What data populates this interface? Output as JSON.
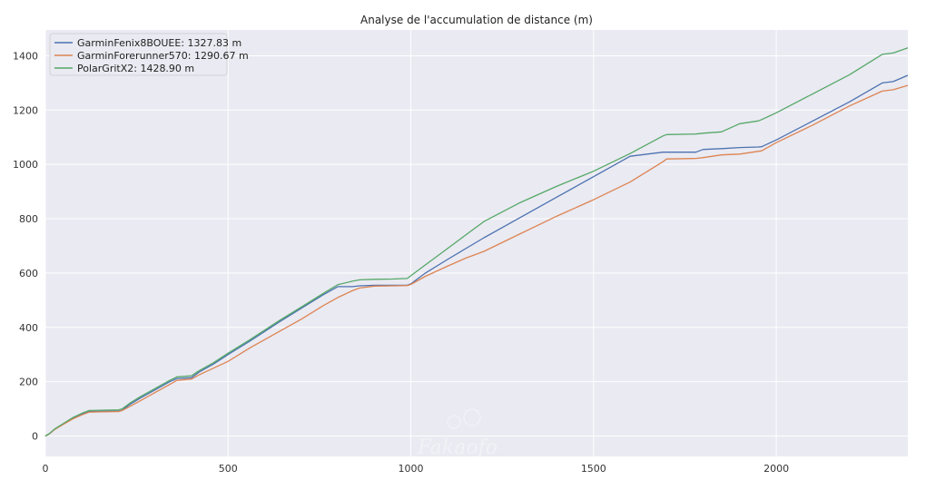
{
  "chart_data": {
    "type": "line",
    "title": "Analyse de l'accumulation de distance (m)",
    "xlabel": "",
    "ylabel": "",
    "xlim": [
      0,
      2360
    ],
    "ylim": [
      -75,
      1495
    ],
    "x_ticks": [
      0,
      500,
      1000,
      1500,
      2000
    ],
    "y_ticks": [
      0,
      200,
      400,
      600,
      800,
      1000,
      1200,
      1400
    ],
    "grid": true,
    "legend_position": "top-left",
    "colors": {
      "background": "#eaeaf2",
      "grid": "#ffffff"
    },
    "watermark": "Fakaofo",
    "series": [
      {
        "name": "GarminFenix8BOUEE: 1327.83 m",
        "color": "#4c72b0",
        "x": [
          0,
          10,
          25,
          50,
          75,
          100,
          120,
          150,
          200,
          210,
          230,
          260,
          300,
          340,
          360,
          400,
          420,
          460,
          500,
          560,
          600,
          640,
          700,
          760,
          800,
          840,
          860,
          900,
          950,
          990,
          1000,
          1040,
          1100,
          1150,
          1200,
          1300,
          1400,
          1500,
          1600,
          1690,
          1700,
          1780,
          1800,
          1850,
          1900,
          1950,
          1960,
          2000,
          2100,
          2200,
          2290,
          2320,
          2360
        ],
        "y": [
          0,
          8,
          25,
          45,
          65,
          80,
          90,
          91,
          91,
          95,
          115,
          140,
          170,
          200,
          212,
          215,
          235,
          265,
          300,
          350,
          385,
          420,
          470,
          520,
          550,
          550,
          553,
          555,
          555,
          555,
          560,
          600,
          650,
          690,
          730,
          805,
          880,
          955,
          1030,
          1045,
          1045,
          1045,
          1055,
          1058,
          1062,
          1064,
          1065,
          1090,
          1160,
          1230,
          1300,
          1305,
          1328
        ]
      },
      {
        "name": "GarminForerunner570: 1290.67 m",
        "color": "#dd8452",
        "x": [
          0,
          10,
          25,
          50,
          75,
          100,
          120,
          150,
          200,
          210,
          230,
          260,
          300,
          340,
          360,
          400,
          420,
          460,
          500,
          560,
          600,
          640,
          700,
          760,
          800,
          840,
          860,
          900,
          950,
          990,
          1000,
          1040,
          1100,
          1150,
          1200,
          1300,
          1400,
          1500,
          1600,
          1690,
          1700,
          1780,
          1800,
          1850,
          1900,
          1950,
          1960,
          2000,
          2100,
          2200,
          2290,
          2320,
          2360
        ],
        "y": [
          0,
          7,
          24,
          44,
          63,
          78,
          88,
          89,
          90,
          94,
          108,
          130,
          160,
          190,
          205,
          210,
          225,
          250,
          275,
          325,
          355,
          385,
          430,
          480,
          510,
          535,
          545,
          552,
          553,
          554,
          558,
          588,
          625,
          655,
          680,
          745,
          810,
          870,
          935,
          1010,
          1020,
          1022,
          1025,
          1035,
          1038,
          1048,
          1050,
          1080,
          1145,
          1215,
          1270,
          1275,
          1291
        ]
      },
      {
        "name": "PolarGritX2: 1428.90 m",
        "color": "#55a868",
        "x": [
          0,
          10,
          25,
          50,
          75,
          100,
          120,
          150,
          200,
          210,
          230,
          260,
          300,
          340,
          360,
          400,
          420,
          460,
          500,
          560,
          600,
          640,
          700,
          760,
          800,
          840,
          860,
          900,
          950,
          990,
          1000,
          1040,
          1100,
          1150,
          1200,
          1300,
          1400,
          1500,
          1600,
          1690,
          1700,
          1780,
          1800,
          1850,
          1900,
          1950,
          1960,
          2000,
          2100,
          2200,
          2290,
          2320,
          2360
        ],
        "y": [
          0,
          8,
          26,
          47,
          68,
          84,
          94,
          95,
          96,
          100,
          120,
          145,
          175,
          205,
          218,
          222,
          240,
          270,
          305,
          355,
          390,
          425,
          475,
          525,
          557,
          570,
          575,
          577,
          578,
          580,
          590,
          630,
          690,
          740,
          790,
          860,
          920,
          975,
          1040,
          1105,
          1110,
          1112,
          1115,
          1120,
          1150,
          1160,
          1165,
          1190,
          1260,
          1330,
          1405,
          1410,
          1429
        ]
      }
    ]
  }
}
